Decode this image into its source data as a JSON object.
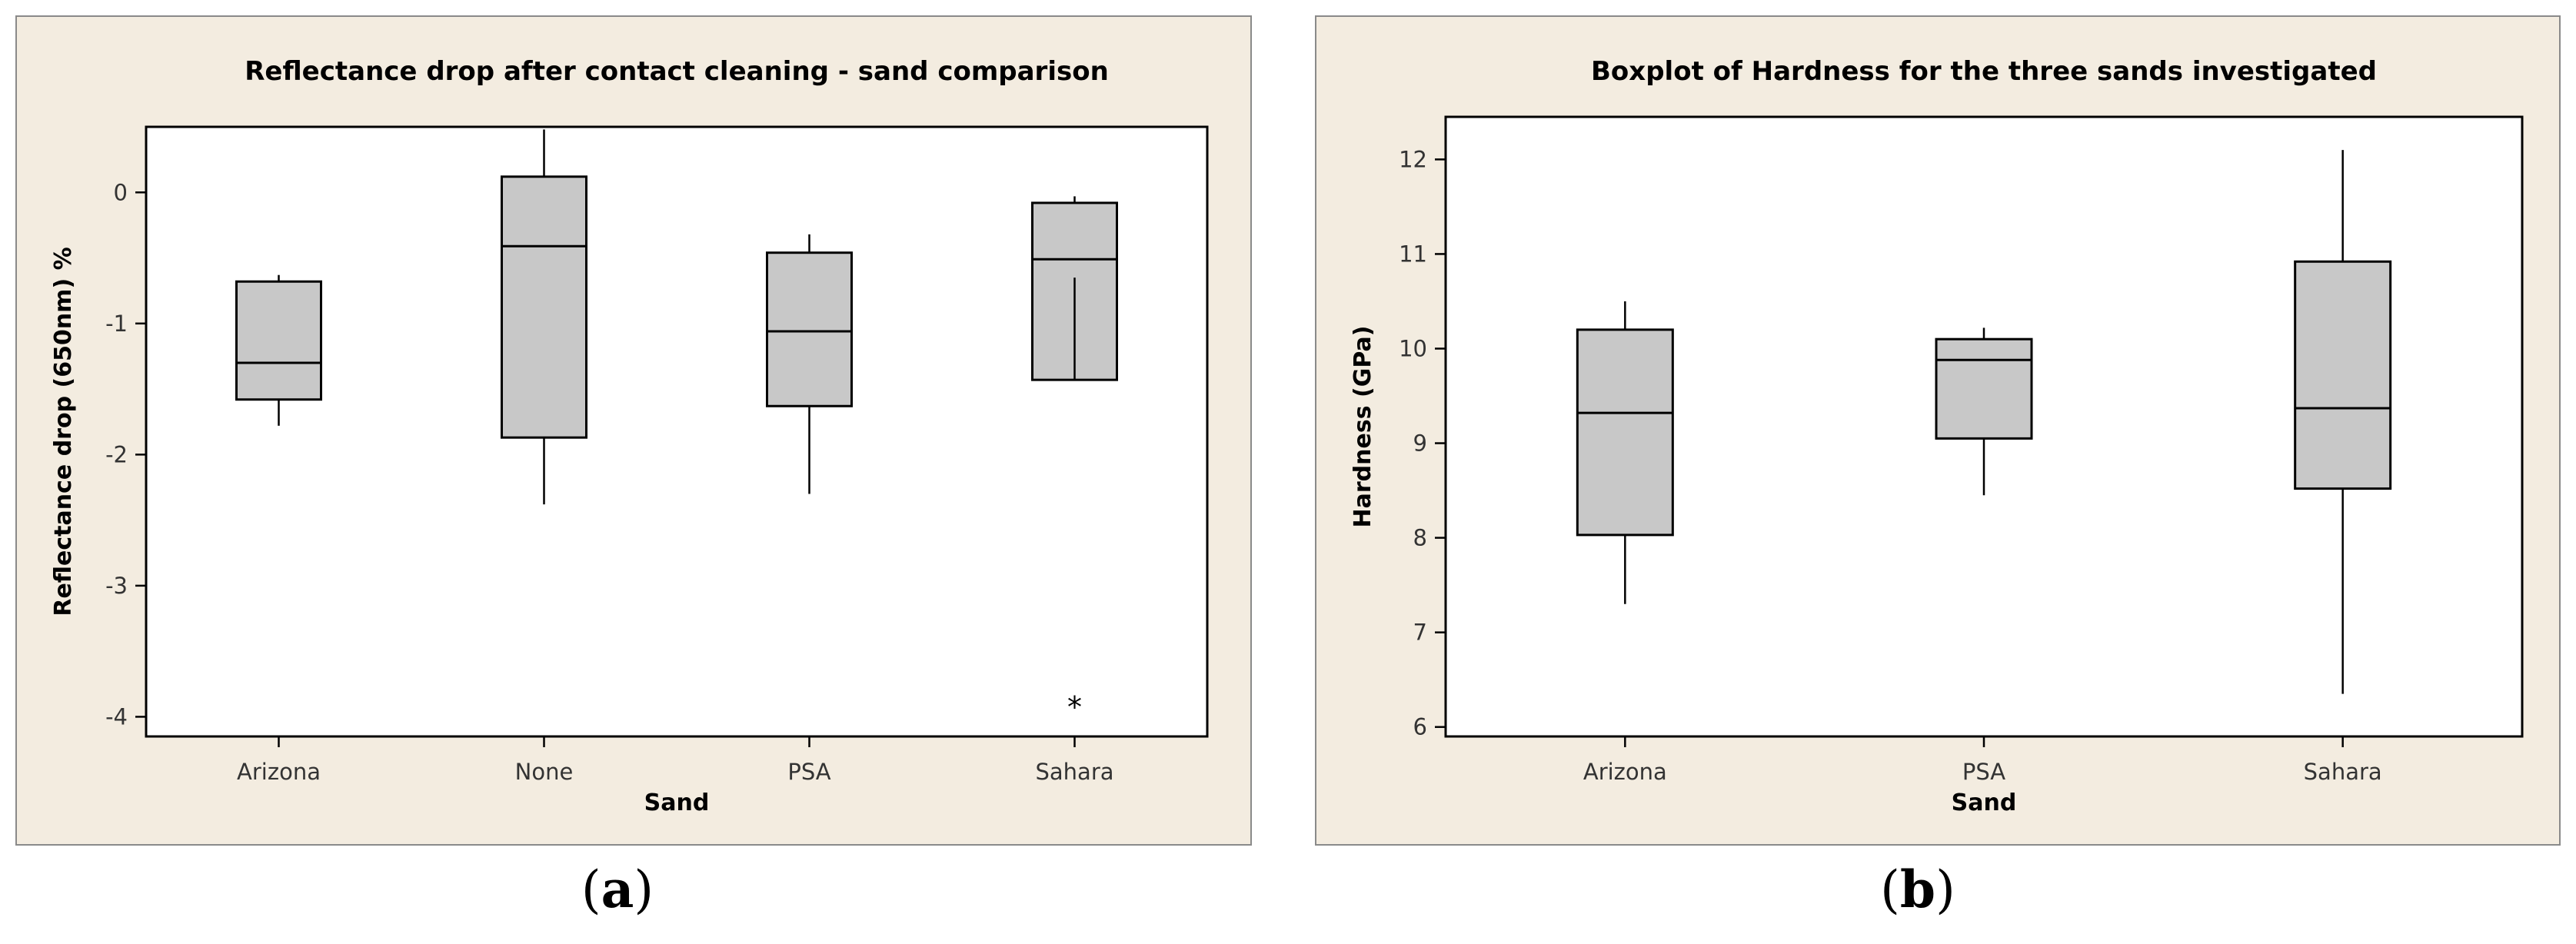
{
  "captions": {
    "a_open": "(",
    "a_letter": "a",
    "a_close": ")",
    "b_open": "(",
    "b_letter": "b",
    "b_close": ")"
  },
  "chart_data": [
    {
      "type": "box",
      "title": "Reflectance drop after contact cleaning - sand comparison",
      "xlabel": "Sand",
      "ylabel": "Reflectance drop (650nm) %",
      "ylim": [
        -4.15,
        0.5
      ],
      "yticks": [
        0,
        -1,
        -2,
        -3,
        -4
      ],
      "grid": false,
      "categories": [
        "Arizona",
        "None",
        "PSA",
        "Sahara"
      ],
      "boxes": [
        {
          "min": -1.78,
          "q1": -1.58,
          "median": -1.3,
          "q3": -0.68,
          "max": -0.63,
          "outliers": []
        },
        {
          "min": -2.38,
          "q1": -1.87,
          "median": -0.41,
          "q3": 0.12,
          "max": 0.48,
          "outliers": []
        },
        {
          "min": -2.3,
          "q1": -1.63,
          "median": -1.06,
          "q3": -0.46,
          "max": -0.32,
          "outliers": []
        },
        {
          "min": -1.43,
          "q1": -1.43,
          "median": -0.51,
          "q3": -0.08,
          "max": -0.03,
          "outliers": [
            -3.92
          ]
        }
      ],
      "outlier_marker": "*",
      "box_color": "#c8c8c8"
    },
    {
      "type": "box",
      "title": "Boxplot of Hardness for the three sands investigated",
      "xlabel": "Sand",
      "ylabel": "Hardness (GPa)",
      "ylim": [
        5.9,
        12.45
      ],
      "yticks": [
        6,
        7,
        8,
        9,
        10,
        11,
        12
      ],
      "grid": false,
      "categories": [
        "Arizona",
        "PSA",
        "Sahara"
      ],
      "boxes": [
        {
          "min": 7.3,
          "q1": 8.03,
          "median": 9.32,
          "q3": 10.2,
          "max": 10.5,
          "outliers": []
        },
        {
          "min": 8.45,
          "q1": 9.05,
          "median": 9.88,
          "q3": 10.1,
          "max": 10.22,
          "outliers": []
        },
        {
          "min": 6.35,
          "q1": 8.52,
          "median": 9.37,
          "q3": 10.92,
          "max": 12.1,
          "outliers": []
        }
      ],
      "outlier_marker": "*",
      "box_color": "#c8c8c8"
    }
  ]
}
